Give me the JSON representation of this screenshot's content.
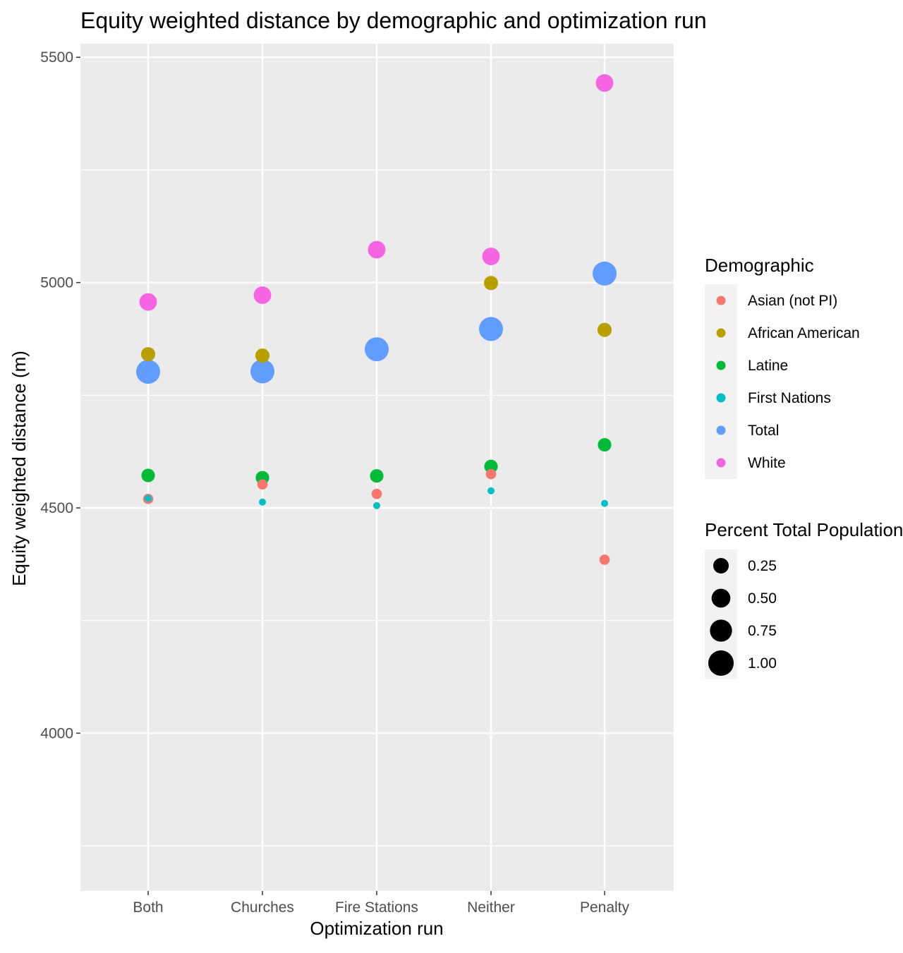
{
  "chart_data": {
    "type": "scatter",
    "title": "Equity weighted distance by demographic and optimization run",
    "xlabel": "Optimization run",
    "ylabel": "Equity weighted distance (m)",
    "categories": [
      "Both",
      "Churches",
      "Fire Stations",
      "Neither",
      "Penalty"
    ],
    "ylim": [
      3650,
      5530
    ],
    "y_ticks": [
      4000,
      4500,
      5000,
      5500
    ],
    "y_minor_ticks": [
      3750,
      4250,
      4750,
      5250
    ],
    "grid": true,
    "legend_position": "right",
    "color_legend": {
      "title": "Demographic",
      "entries": [
        "Asian (not PI)",
        "African American",
        "Latine",
        "First Nations",
        "Total",
        "White"
      ]
    },
    "size_legend": {
      "title": "Percent Total Population",
      "entries": [
        {
          "label": "0.25",
          "value": 0.25
        },
        {
          "label": "0.50",
          "value": 0.5
        },
        {
          "label": "0.75",
          "value": 0.75
        },
        {
          "label": "1.00",
          "value": 1.0
        }
      ]
    },
    "series": [
      {
        "name": "Asian (not PI)",
        "color": "#F8766D",
        "size": 0.19,
        "values": [
          4520,
          4552,
          4531,
          4575,
          4385
        ]
      },
      {
        "name": "African American",
        "color": "#B79F00",
        "size": 0.42,
        "values": [
          4841,
          4838,
          null,
          4999,
          4895
        ]
      },
      {
        "name": "Latine",
        "color": "#00BA38",
        "size": 0.38,
        "values": [
          4572,
          4567,
          4571,
          4592,
          4640
        ]
      },
      {
        "name": "First Nations",
        "color": "#00BFC4",
        "size": 0.0,
        "values": [
          4521,
          4513,
          4505,
          4538,
          4510
        ]
      },
      {
        "name": "Total",
        "color": "#619CFF",
        "size": 1.0,
        "values": [
          4802,
          4803,
          4852,
          4897,
          5020
        ]
      },
      {
        "name": "White",
        "color": "#F564E3",
        "size": 0.62,
        "values": [
          4957,
          4972,
          5073,
          5058,
          5443
        ]
      }
    ]
  }
}
